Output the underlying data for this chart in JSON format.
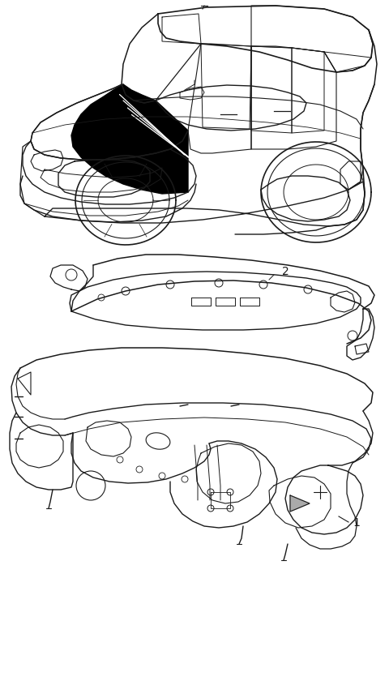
{
  "background_color": "#ffffff",
  "fig_width": 4.8,
  "fig_height": 8.62,
  "dpi": 100,
  "label1": "1",
  "label2": "2",
  "line_color": "#1a1a1a",
  "font_size": 10
}
